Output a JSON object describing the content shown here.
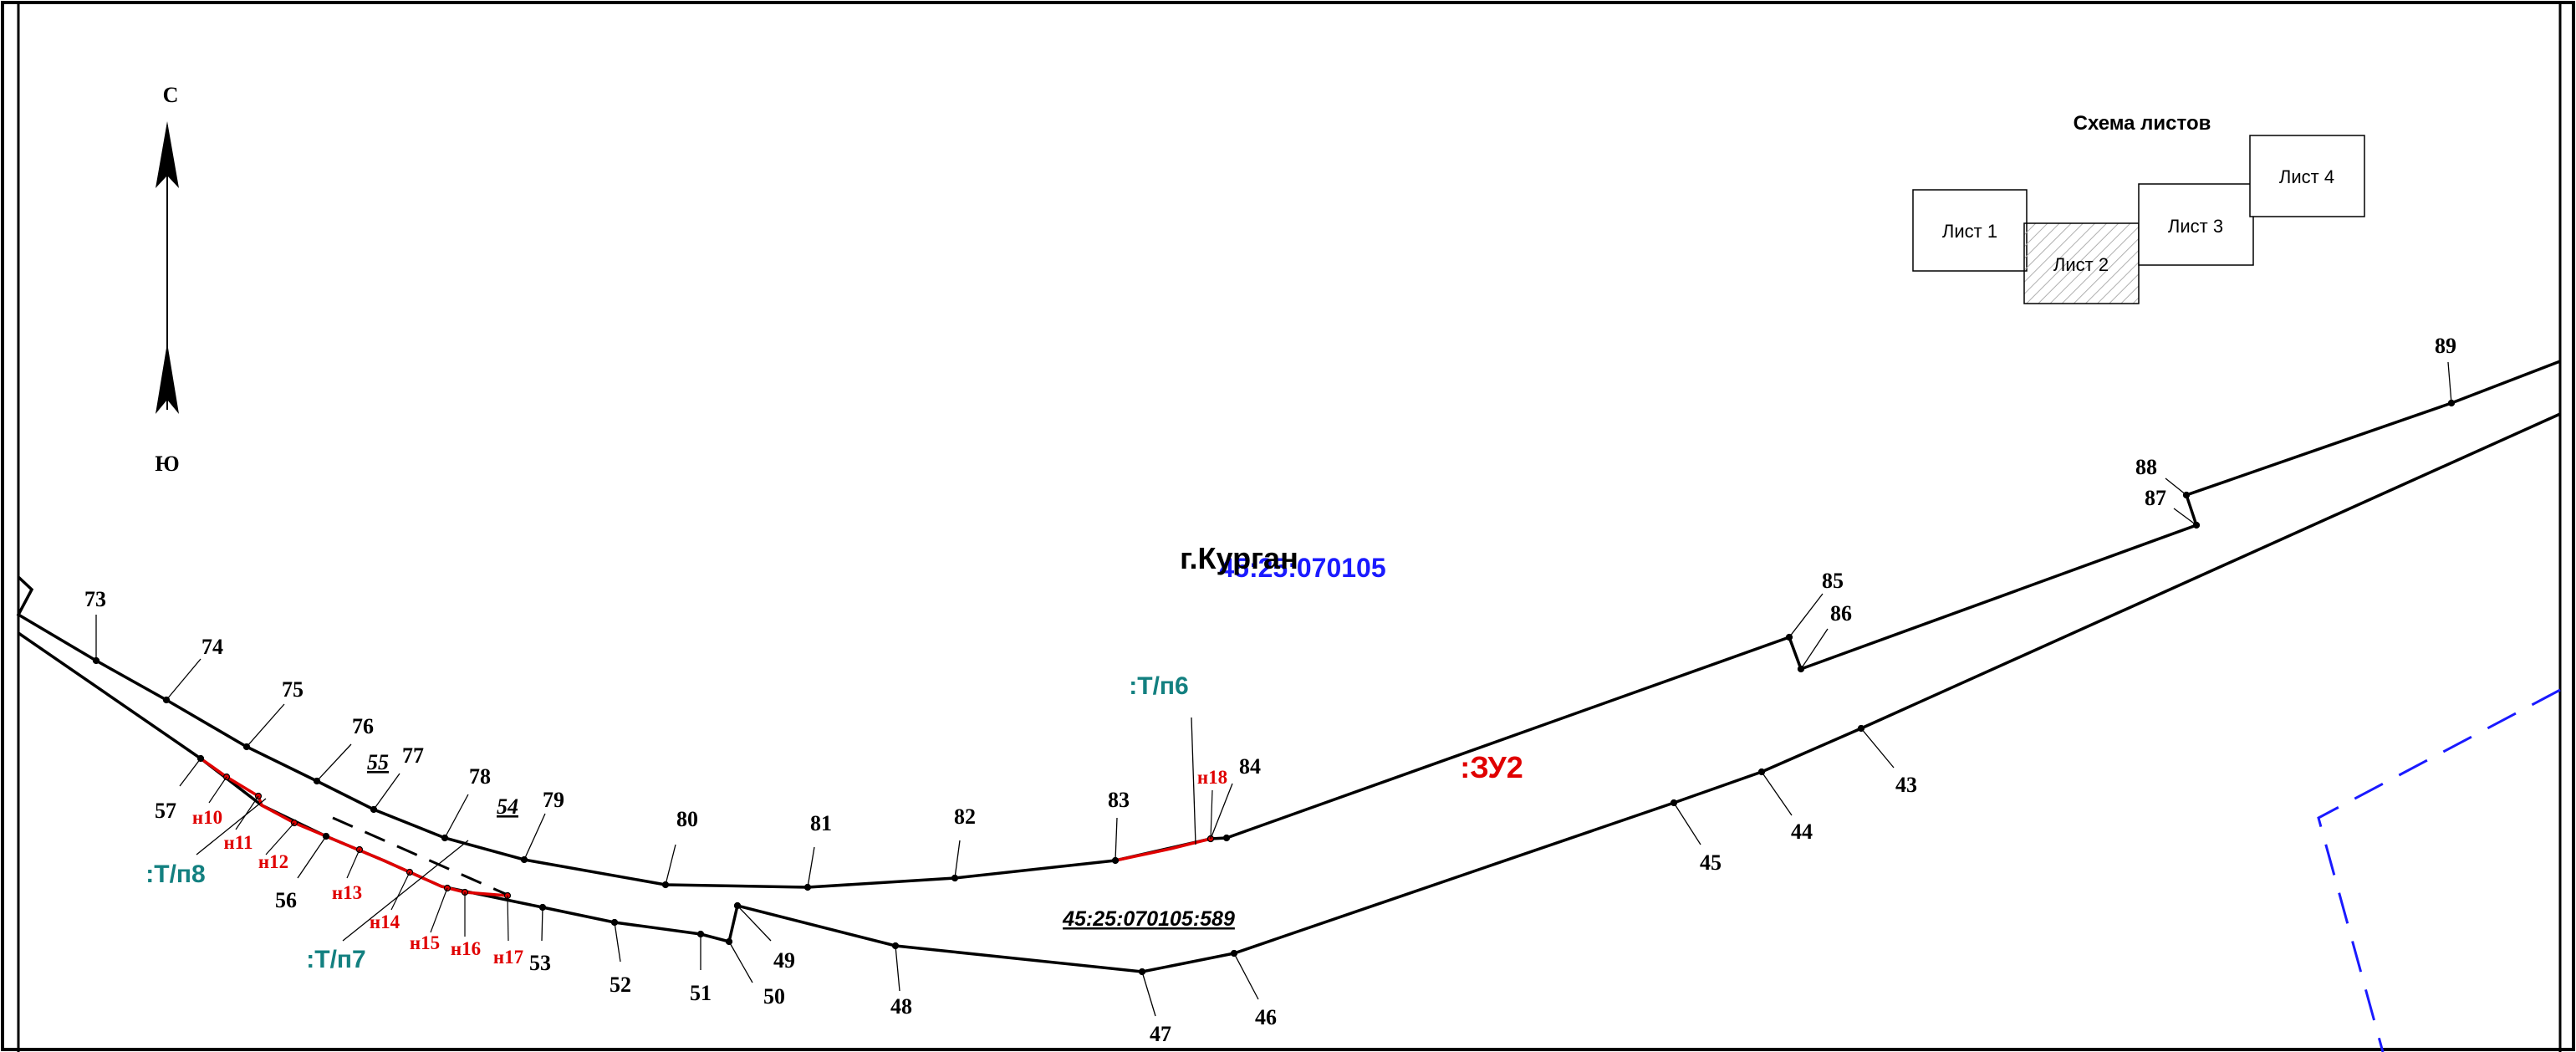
{
  "compass": {
    "north": "С",
    "south": "Ю"
  },
  "sheet_scheme": {
    "title": "Схема листов",
    "sheets": [
      {
        "label": "Лист 1",
        "active": false
      },
      {
        "label": "Лист 2",
        "active": true
      },
      {
        "label": "Лист 3",
        "active": false
      },
      {
        "label": "Лист 4",
        "active": false
      }
    ]
  },
  "labels": {
    "city": "г.Курган",
    "block": "45:25:070105",
    "parcel_new": ":ЗУ2",
    "parcel_existing": "45:25:070105:589",
    "easement_6": ":Т/п6",
    "easement_7": ":Т/п7",
    "easement_8": ":Т/п8"
  },
  "points": {
    "p43": "43",
    "p44": "44",
    "p45": "45",
    "p46": "46",
    "p47": "47",
    "p48": "48",
    "p49": "49",
    "p50": "50",
    "p51": "51",
    "p52": "52",
    "p53": "53",
    "p54": "54",
    "p55": "55",
    "p56": "56",
    "p57": "57",
    "p73": "73",
    "p74": "74",
    "p75": "75",
    "p76": "76",
    "p77": "77",
    "p78": "78",
    "p79": "79",
    "p80": "80",
    "p81": "81",
    "p82": "82",
    "p83": "83",
    "p84": "84",
    "p85": "85",
    "p86": "86",
    "p87": "87",
    "p88": "88",
    "p89": "89"
  },
  "new_points": {
    "n10": "н10",
    "n11": "н11",
    "n12": "н12",
    "n13": "н13",
    "n14": "н14",
    "n15": "н15",
    "n16": "н16",
    "n17": "н17",
    "n18": "н18"
  },
  "colors": {
    "boundary": "#000000",
    "new_boundary": "#e00000",
    "block_label": "#1a1aff",
    "easement_label": "#138080",
    "block_boundary": "#1a1aff"
  }
}
